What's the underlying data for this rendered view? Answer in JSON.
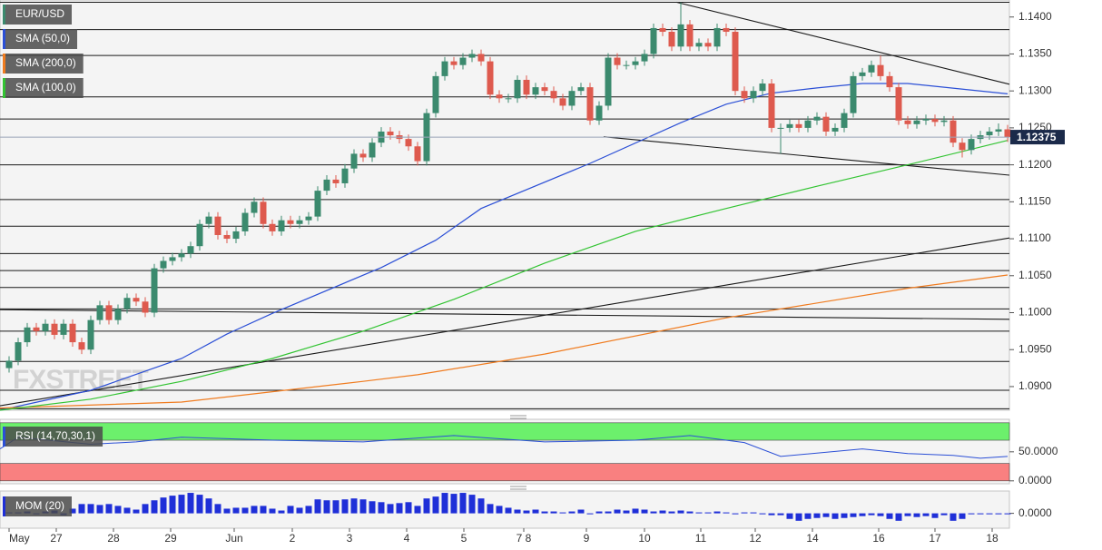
{
  "chart_data": [
    {
      "type": "candlestick",
      "name": "EUR/USD",
      "watermark": "FXSTREET",
      "up_color": "#3b8a6e",
      "down_color": "#de5a4e",
      "xlim": [
        -1,
        110.2
      ],
      "ylim": [
        1.0868,
        1.1423
      ],
      "yticks": [
        {
          "value": 1.09,
          "label": "1.0900"
        },
        {
          "value": 1.095,
          "label": "1.0950"
        },
        {
          "value": 1.1,
          "label": "1.1000"
        },
        {
          "value": 1.105,
          "label": "1.1050"
        },
        {
          "value": 1.11,
          "label": "1.1100"
        },
        {
          "value": 1.115,
          "label": "1.1150"
        },
        {
          "value": 1.12,
          "label": "1.1200"
        },
        {
          "value": 1.125,
          "label": "1.1250"
        },
        {
          "value": 1.13,
          "label": "1.1300"
        },
        {
          "value": 1.135,
          "label": "1.1350"
        },
        {
          "value": 1.14,
          "label": "1.1400"
        }
      ],
      "xticks": [
        {
          "value": 0,
          "label": "May"
        },
        {
          "value": 5.2,
          "label": "27"
        },
        {
          "value": 11.5,
          "label": "28"
        },
        {
          "value": 17.8,
          "label": "29"
        },
        {
          "value": 24.8,
          "label": "Jun"
        },
        {
          "value": 31.2,
          "label": "2"
        },
        {
          "value": 37.5,
          "label": "3"
        },
        {
          "value": 43.8,
          "label": "4"
        },
        {
          "value": 50.1,
          "label": "5"
        },
        {
          "value": 56.7,
          "label": "7 8"
        },
        {
          "value": 63.6,
          "label": "9"
        },
        {
          "value": 70,
          "label": "10"
        },
        {
          "value": 76.2,
          "label": "11"
        },
        {
          "value": 82.2,
          "label": "12"
        },
        {
          "value": 88.5,
          "label": "14"
        },
        {
          "value": 95.8,
          "label": "16"
        },
        {
          "value": 102,
          "label": "17"
        },
        {
          "value": 108.3,
          "label": "18"
        }
      ],
      "open": [
        1.0925,
        1.0935,
        1.096,
        1.098,
        1.0975,
        1.0985,
        1.097,
        1.0985,
        1.096,
        1.095,
        1.099,
        1.101,
        1.099,
        1.1005,
        1.102,
        1.1015,
        1.1,
        1.106,
        1.107,
        1.1075,
        1.108,
        1.109,
        1.112,
        1.113,
        1.1105,
        1.11,
        1.111,
        1.1135,
        1.115,
        1.112,
        1.111,
        1.1125,
        1.112,
        1.1125,
        1.113,
        1.1165,
        1.118,
        1.1175,
        1.1195,
        1.1215,
        1.121,
        1.123,
        1.1245,
        1.124,
        1.1235,
        1.1225,
        1.1205,
        1.127,
        1.132,
        1.134,
        1.1335,
        1.1345,
        1.135,
        1.134,
        1.1295,
        1.129,
        1.129,
        1.1315,
        1.1295,
        1.1305,
        1.13,
        1.129,
        1.128,
        1.13,
        1.1305,
        1.126,
        1.128,
        1.1345,
        1.1335,
        1.1335,
        1.134,
        1.135,
        1.1385,
        1.138,
        1.136,
        1.139,
        1.136,
        1.1365,
        1.136,
        1.1385,
        1.138,
        1.13,
        1.129,
        1.13,
        1.131,
        1.125,
        1.125,
        1.1255,
        1.125,
        1.126,
        1.1265,
        1.1245,
        1.125,
        1.127,
        1.132,
        1.1325,
        1.1335,
        1.132,
        1.1305,
        1.126,
        1.1255,
        1.126,
        1.1262,
        1.1258,
        1.126,
        1.123,
        1.122,
        1.1235,
        1.124,
        1.1245,
        1.1248
      ],
      "high": [
        1.0941,
        1.0966,
        1.0986,
        1.0986,
        1.0991,
        1.0991,
        1.0991,
        1.0991,
        1.0966,
        1.0996,
        1.1016,
        1.1016,
        1.1011,
        1.1026,
        1.1026,
        1.1021,
        1.1066,
        1.1076,
        1.1081,
        1.1086,
        1.1096,
        1.1126,
        1.1136,
        1.1136,
        1.1111,
        1.1116,
        1.1141,
        1.1156,
        1.1156,
        1.1126,
        1.1131,
        1.1131,
        1.1131,
        1.1136,
        1.1171,
        1.1186,
        1.1186,
        1.1201,
        1.1221,
        1.1221,
        1.1236,
        1.1251,
        1.1251,
        1.1246,
        1.1241,
        1.1231,
        1.1276,
        1.1326,
        1.1346,
        1.1346,
        1.1351,
        1.1356,
        1.1356,
        1.1346,
        1.1301,
        1.1296,
        1.1321,
        1.1321,
        1.1311,
        1.1311,
        1.1306,
        1.1296,
        1.1306,
        1.1311,
        1.1311,
        1.1286,
        1.1351,
        1.1351,
        1.1341,
        1.1346,
        1.1356,
        1.1391,
        1.1391,
        1.1386,
        1.142,
        1.1396,
        1.1371,
        1.1371,
        1.1391,
        1.1391,
        1.1386,
        1.1306,
        1.1306,
        1.1316,
        1.1316,
        1.1256,
        1.1261,
        1.1261,
        1.1266,
        1.1271,
        1.1271,
        1.1256,
        1.1276,
        1.1326,
        1.1331,
        1.1341,
        1.1348,
        1.1326,
        1.1311,
        1.1266,
        1.1266,
        1.1268,
        1.1268,
        1.1266,
        1.1266,
        1.1236,
        1.1241,
        1.1246,
        1.1251,
        1.1256,
        1.1254
      ],
      "low": [
        1.0919,
        1.0929,
        1.0954,
        1.0969,
        1.0969,
        1.0964,
        1.0964,
        1.0954,
        1.0944,
        1.0944,
        1.0984,
        1.0984,
        1.0984,
        1.0999,
        1.1009,
        1.0994,
        1.0994,
        1.1054,
        1.1064,
        1.1069,
        1.1074,
        1.1084,
        1.1114,
        1.1099,
        1.1094,
        1.1094,
        1.1104,
        1.1129,
        1.1114,
        1.1104,
        1.1104,
        1.1114,
        1.1114,
        1.1119,
        1.1124,
        1.1159,
        1.1169,
        1.1169,
        1.1189,
        1.1204,
        1.1204,
        1.1224,
        1.1234,
        1.1229,
        1.1219,
        1.1199,
        1.1199,
        1.1264,
        1.1314,
        1.1329,
        1.1329,
        1.1339,
        1.1334,
        1.1289,
        1.1284,
        1.1284,
        1.1284,
        1.1289,
        1.1289,
        1.1294,
        1.1284,
        1.1274,
        1.1274,
        1.1294,
        1.1254,
        1.1254,
        1.1274,
        1.1329,
        1.1329,
        1.1329,
        1.1334,
        1.1344,
        1.1374,
        1.1354,
        1.1354,
        1.1354,
        1.1354,
        1.1354,
        1.1354,
        1.1374,
        1.1294,
        1.1284,
        1.1284,
        1.1294,
        1.1244,
        1.1215,
        1.1244,
        1.1244,
        1.1244,
        1.1254,
        1.1239,
        1.1239,
        1.1244,
        1.1264,
        1.1314,
        1.1319,
        1.1314,
        1.1299,
        1.1254,
        1.1249,
        1.1249,
        1.1254,
        1.1252,
        1.1252,
        1.1224,
        1.121,
        1.1214,
        1.1229,
        1.1234,
        1.1239,
        1.1231
      ],
      "close": [
        1.0935,
        1.096,
        1.098,
        1.0975,
        1.0985,
        1.097,
        1.0985,
        1.096,
        1.095,
        1.099,
        1.101,
        1.099,
        1.1005,
        1.102,
        1.1015,
        1.1,
        1.106,
        1.107,
        1.1075,
        1.108,
        1.109,
        1.112,
        1.113,
        1.1105,
        1.11,
        1.111,
        1.1135,
        1.115,
        1.112,
        1.111,
        1.1125,
        1.112,
        1.1125,
        1.113,
        1.1165,
        1.118,
        1.1175,
        1.1195,
        1.1215,
        1.121,
        1.123,
        1.1245,
        1.124,
        1.1235,
        1.1225,
        1.1205,
        1.127,
        1.132,
        1.134,
        1.1335,
        1.1345,
        1.135,
        1.134,
        1.1295,
        1.129,
        1.129,
        1.1315,
        1.1295,
        1.1305,
        1.13,
        1.129,
        1.128,
        1.13,
        1.1305,
        1.126,
        1.128,
        1.1345,
        1.1335,
        1.1335,
        1.134,
        1.135,
        1.1385,
        1.138,
        1.136,
        1.139,
        1.136,
        1.1365,
        1.136,
        1.1385,
        1.138,
        1.13,
        1.129,
        1.13,
        1.131,
        1.125,
        1.125,
        1.1255,
        1.125,
        1.126,
        1.1265,
        1.1245,
        1.125,
        1.127,
        1.132,
        1.1325,
        1.1335,
        1.132,
        1.1305,
        1.126,
        1.1255,
        1.126,
        1.1262,
        1.1258,
        1.126,
        1.123,
        1.122,
        1.1235,
        1.124,
        1.1245,
        1.1248,
        1.12375
      ],
      "series": [
        {
          "name": "SMA (50,0)",
          "color": "#2b4fd6",
          "x": [
            -1,
            9,
            19,
            24,
            29,
            41,
            47,
            52,
            64,
            74,
            79,
            84,
            89,
            94,
            99,
            110
          ],
          "values": [
            1.0868,
            1.0895,
            1.0938,
            1.0971,
            1.0999,
            1.1061,
            1.1098,
            1.1141,
            1.1202,
            1.1257,
            1.1282,
            1.1297,
            1.1304,
            1.131,
            1.131,
            1.1296
          ]
        },
        {
          "name": "SMA (200,0)",
          "color": "#f07c20",
          "x": [
            -1,
            19,
            29,
            39,
            45,
            59,
            79,
            99,
            110
          ],
          "values": [
            1.0871,
            1.0879,
            1.0893,
            1.0907,
            1.0916,
            1.0944,
            1.0993,
            1.1033,
            1.1051
          ]
        },
        {
          "name": "SMA (100,0)",
          "color": "#33c433",
          "x": [
            -1,
            9,
            19,
            29,
            39,
            49,
            59,
            69,
            79,
            89,
            99,
            110
          ],
          "values": [
            1.0868,
            1.0883,
            1.0907,
            1.0938,
            1.0975,
            1.1018,
            1.1067,
            1.111,
            1.1141,
            1.1171,
            1.12,
            1.1233
          ]
        }
      ],
      "levels": [
        1.142,
        1.1383,
        1.1348,
        1.1292,
        1.1262,
        1.12,
        1.1153,
        1.1117,
        1.108,
        1.1057,
        1.1034,
        1.1005,
        1.0975,
        1.0934,
        1.0895,
        1.087
      ],
      "trendlines": [
        {
          "x": [
            73.5,
            110.2
          ],
          "values": [
            1.142,
            1.1309
          ]
        },
        {
          "x": [
            65.5,
            110.2
          ],
          "values": [
            1.1238,
            1.1186
          ]
        },
        {
          "x": [
            -1,
            110.2
          ],
          "values": [
            1.0874,
            1.1101
          ]
        },
        {
          "x": [
            -1,
            110.2
          ],
          "values": [
            1.1004,
            1.0991
          ]
        }
      ]
    },
    {
      "type": "line",
      "ylim": [
        -5,
        106
      ],
      "yticks": [
        {
          "value": 50,
          "label": "50.0000"
        },
        {
          "value": 0,
          "label": "0.0000"
        }
      ],
      "bands": [
        {
          "range": [
            70,
            100
          ],
          "color": "#6cf06c"
        },
        {
          "range": [
            0,
            30
          ],
          "color": "#f98080"
        }
      ],
      "series": [
        {
          "name": "RSI (14,70,30,1)",
          "color": "#2b4fd6",
          "x": [
            -1,
            1,
            9,
            14,
            19,
            29,
            39,
            49,
            59,
            69,
            75,
            81,
            85,
            94,
            99,
            104,
            107,
            110
          ],
          "values": [
            55,
            75,
            63,
            67,
            75,
            70,
            67,
            78,
            67,
            70,
            78,
            66,
            42,
            55,
            47,
            44,
            39,
            42
          ]
        }
      ]
    },
    {
      "type": "bar",
      "ylim": [
        -0.004,
        0.006
      ],
      "yticks": [
        {
          "value": 0,
          "label": "0.0000"
        }
      ],
      "series": [
        {
          "name": "MOM (20)",
          "color": "#1f2fd8",
          "values": [
            0.00025,
            0.00025,
            0.0005,
            -0.00025,
            0.0005,
            0.00075,
            -0.0005,
            0.00125,
            0.0025,
            0.0025,
            0.00225,
            0.0025,
            0.002,
            0.0015,
            0.001,
            0.0025,
            0.0035,
            0.00425,
            0.00475,
            0.005,
            0.0055,
            0.005,
            0.004,
            0.0025,
            0.00125,
            0.0015,
            0.0015,
            0.002,
            0.002,
            0.00125,
            0.00075,
            0.002,
            0.0015,
            0.002,
            0.00375,
            0.0035,
            0.0035,
            0.00375,
            0.004,
            0.00375,
            0.00325,
            0.003,
            0.0025,
            0.00275,
            0.003,
            0.002,
            0.004,
            0.0045,
            0.0055,
            0.00525,
            0.0055,
            0.005,
            0.004,
            0.0025,
            0.002,
            0.0015,
            0.001,
            0.00075,
            0.001,
            0.0005,
            0.0005,
            0.00025,
            0.0005,
            0.001,
            -0.00025,
            0.0005,
            0.0005,
            0.001,
            0.00075,
            0.00125,
            0.001,
            0.0005,
            0.00075,
            0.0005,
            0.00075,
            0.0005,
            0.00025,
            0.00025,
            0.0005,
            0.00025,
            -0.00025,
            0.00025,
            0.00025,
            -0.00025,
            -0.0005,
            -0.0005,
            -0.0015,
            -0.002,
            -0.0015,
            -0.00125,
            -0.001,
            -0.0015,
            -0.00125,
            -0.001,
            -0.00075,
            -0.0005,
            -0.00075,
            -0.0015,
            -0.002,
            -0.00075,
            -0.001,
            -0.00075,
            -0.00125,
            -0.0005,
            -0.002,
            -0.0015,
            -0.00025,
            -0.00025,
            -0.00025,
            -0.00025,
            -0.00025
          ]
        }
      ]
    }
  ]
}
